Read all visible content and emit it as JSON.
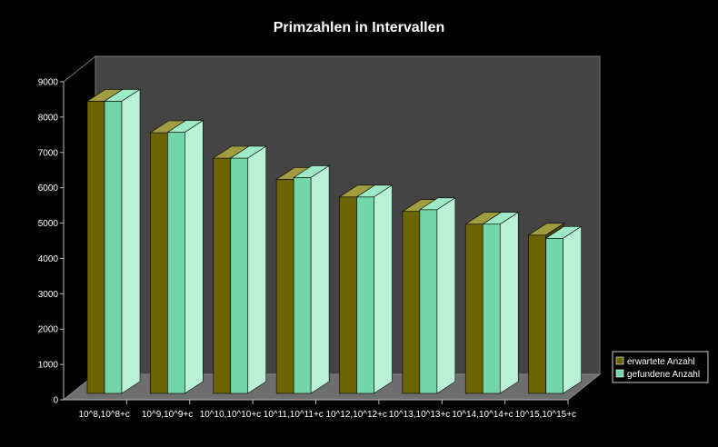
{
  "chart_data": {
    "type": "bar",
    "title": "Primzahlen in Intervallen",
    "categories": [
      "10^8,10^8+c",
      "10^9,10^9+c",
      "10^10,10^10+c",
      "10^11,10^11+c",
      "10^12,10^12+c",
      "10^13,10^13+c",
      "10^14,10^14+c",
      "10^15,10^15+c"
    ],
    "series": [
      {
        "name": "erwartete Anzahl",
        "values": [
          8270,
          7380,
          6660,
          6060,
          5560,
          5150,
          4790,
          4480
        ],
        "color": "#6b6400",
        "top": "#a19c40",
        "side": "#4a4500"
      },
      {
        "name": "gefundene Anzahl",
        "values": [
          8270,
          7390,
          6660,
          6110,
          5560,
          5200,
          4790,
          4390
        ],
        "color": "#72d6a8",
        "top": "#9eeac6",
        "side": "#b9f0d6"
      }
    ],
    "y_ticks": [
      "0",
      "1000",
      "2000",
      "3000",
      "4000",
      "5000",
      "6000",
      "7000",
      "8000",
      "9000"
    ],
    "ylim": [
      0,
      9000
    ],
    "grid": false,
    "legend": "right"
  }
}
